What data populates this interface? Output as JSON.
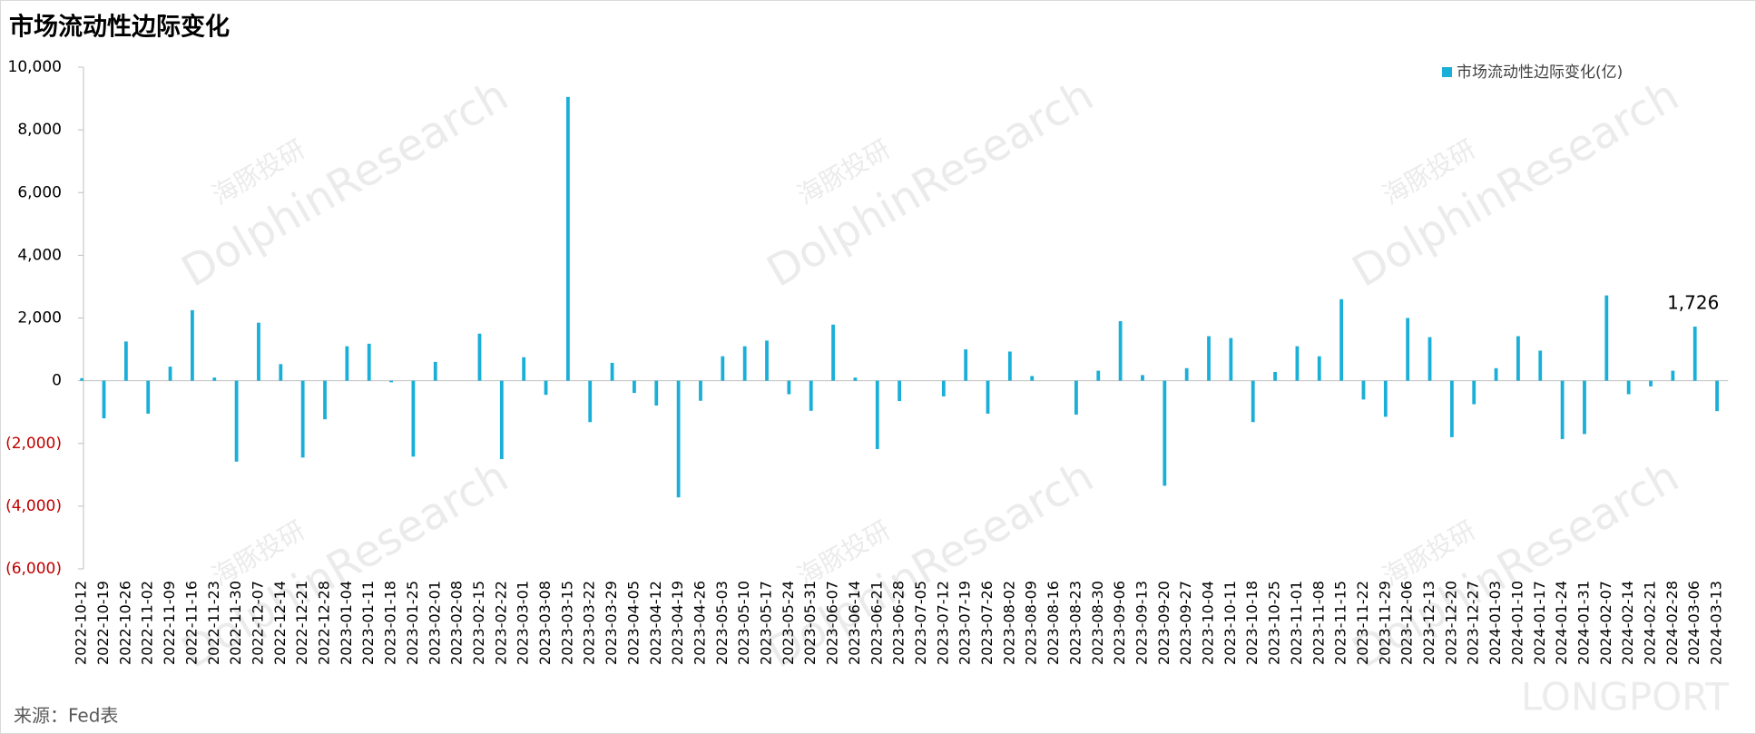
{
  "chart_data": {
    "type": "bar",
    "title": "市场流动性边际变化",
    "source": "来源：Fed表",
    "watermarks": [
      "海豚投研",
      "DolphinResearch"
    ],
    "brand": "LONGPORT",
    "color": "#1aafd8",
    "negative_tick_color": "#c00000",
    "legend": "top-right",
    "grid": false,
    "series": [
      {
        "name": "市场流动性边际变化(亿)",
        "color": "#1aafd8",
        "values": [
          80,
          -1200,
          1250,
          -1050,
          450,
          2250,
          100,
          -2580,
          1850,
          530,
          -2450,
          -1230,
          1100,
          1180,
          -50,
          -2420,
          600,
          0,
          1500,
          -2500,
          750,
          -450,
          9050,
          -1320,
          570,
          -390,
          -790,
          -3720,
          -640,
          780,
          1100,
          1280,
          -430,
          -960,
          1790,
          100,
          -2180,
          -650,
          0,
          -500,
          1000,
          -1050,
          930,
          150,
          0,
          -1080,
          320,
          1900,
          180,
          -3350,
          400,
          1420,
          1360,
          -1320,
          280,
          1100,
          780,
          2600,
          -600,
          -1150,
          2000,
          1390,
          -1800,
          -750,
          400,
          1420,
          960,
          -1860,
          -1700,
          2720,
          -430,
          -180,
          320,
          1726,
          -970
        ],
        "value_labels": [
          null,
          null,
          null,
          null,
          null,
          null,
          null,
          null,
          null,
          null,
          null,
          null,
          null,
          null,
          null,
          null,
          null,
          null,
          null,
          null,
          null,
          null,
          null,
          null,
          null,
          null,
          null,
          null,
          null,
          null,
          null,
          null,
          null,
          null,
          null,
          null,
          null,
          null,
          null,
          null,
          null,
          null,
          null,
          null,
          null,
          null,
          null,
          null,
          null,
          null,
          null,
          null,
          null,
          null,
          null,
          null,
          null,
          null,
          null,
          null,
          null,
          null,
          null,
          null,
          null,
          null,
          null,
          null,
          null,
          null,
          null,
          null,
          null,
          "1,726",
          null
        ]
      }
    ],
    "categories": [
      "2022-10-12",
      "2022-10-19",
      "2022-10-26",
      "2022-11-02",
      "2022-11-09",
      "2022-11-16",
      "2022-11-23",
      "2022-11-30",
      "2022-12-07",
      "2022-12-14",
      "2022-12-21",
      "2022-12-28",
      "2023-01-04",
      "2023-01-11",
      "2023-01-18",
      "2023-01-25",
      "2023-02-01",
      "2023-02-08",
      "2023-02-15",
      "2023-02-22",
      "2023-03-01",
      "2023-03-08",
      "2023-03-15",
      "2023-03-22",
      "2023-03-29",
      "2023-04-05",
      "2023-04-12",
      "2023-04-19",
      "2023-04-26",
      "2023-05-03",
      "2023-05-10",
      "2023-05-17",
      "2023-05-24",
      "2023-05-31",
      "2023-06-07",
      "2023-06-14",
      "2023-06-21",
      "2023-06-28",
      "2023-07-05",
      "2023-07-12",
      "2023-07-19",
      "2023-07-26",
      "2023-08-02",
      "2023-08-09",
      "2023-08-16",
      "2023-08-23",
      "2023-08-30",
      "2023-09-06",
      "2023-09-13",
      "2023-09-20",
      "2023-09-27",
      "2023-10-04",
      "2023-10-11",
      "2023-10-18",
      "2023-10-25",
      "2023-11-01",
      "2023-11-08",
      "2023-11-15",
      "2023-11-22",
      "2023-11-29",
      "2023-12-06",
      "2023-12-13",
      "2023-12-20",
      "2023-12-27",
      "2024-01-03",
      "2024-01-10",
      "2024-01-17",
      "2024-01-24",
      "2024-01-31",
      "2024-02-07",
      "2024-02-14",
      "2024-02-21",
      "2024-02-28",
      "2024-03-06",
      "2024-03-13"
    ],
    "ylim": [
      -6000,
      10000
    ],
    "yticks": [
      {
        "value": -6000,
        "label": "(6,000)"
      },
      {
        "value": -4000,
        "label": "(4,000)"
      },
      {
        "value": -2000,
        "label": "(2,000)"
      },
      0,
      {
        "value": 2000,
        "label": "2,000"
      },
      {
        "value": 4000,
        "label": "4,000"
      },
      {
        "value": 6000,
        "label": "6,000"
      },
      {
        "value": 8000,
        "label": "8,000"
      },
      {
        "value": 10000,
        "label": "10,000"
      }
    ]
  }
}
